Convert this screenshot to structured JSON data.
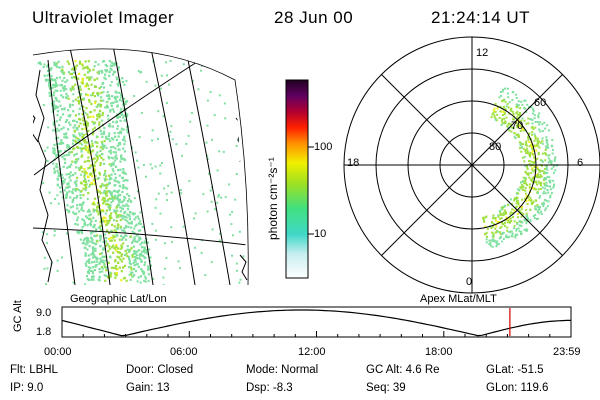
{
  "header": {
    "instrument": "Ultraviolet Imager",
    "date": "28 Jun 00",
    "time": "21:24:14 UT"
  },
  "colorbar": {
    "label": "photon cm⁻²s⁻¹",
    "ticks": [
      "100",
      "10"
    ]
  },
  "left_panel": {
    "caption": "Geographic Lat/Lon"
  },
  "polar_panel": {
    "caption": "Apex MLat/MLT",
    "mlt_labels": {
      "top": "12",
      "left": "18",
      "right": "6",
      "bottom": "0"
    },
    "lat_labels": [
      "60",
      "70",
      "80"
    ]
  },
  "altitude_plot": {
    "ylabel": "GC Alt",
    "ytick_high": "9.0",
    "ytick_low": "1.8",
    "xticks": [
      "00:00",
      "06:00",
      "12:00",
      "18:00",
      "23:59"
    ],
    "current_time_fraction": 0.88
  },
  "status": [
    {
      "label": "Flt:",
      "value": "LBHL"
    },
    {
      "label": "IP:",
      "value": "9.0"
    },
    {
      "label": "Door:",
      "value": "Closed"
    },
    {
      "label": "Gain:",
      "value": "13"
    },
    {
      "label": "Mode:",
      "value": "Normal"
    },
    {
      "label": "Dsp:",
      "value": "-8.3"
    },
    {
      "label": "GC Alt:",
      "value": "4.6 Re"
    },
    {
      "label": "Seq:",
      "value": "39"
    },
    {
      "label": "GLat:",
      "value": "-51.5"
    },
    {
      "label": "GLon:",
      "value": "119.6"
    }
  ],
  "colors": {
    "text": "#000000",
    "marker": "#d00000",
    "aurora_low": "#7fe0a0",
    "aurora_mid": "#9fe040",
    "aurora_high": "#f0f020"
  }
}
